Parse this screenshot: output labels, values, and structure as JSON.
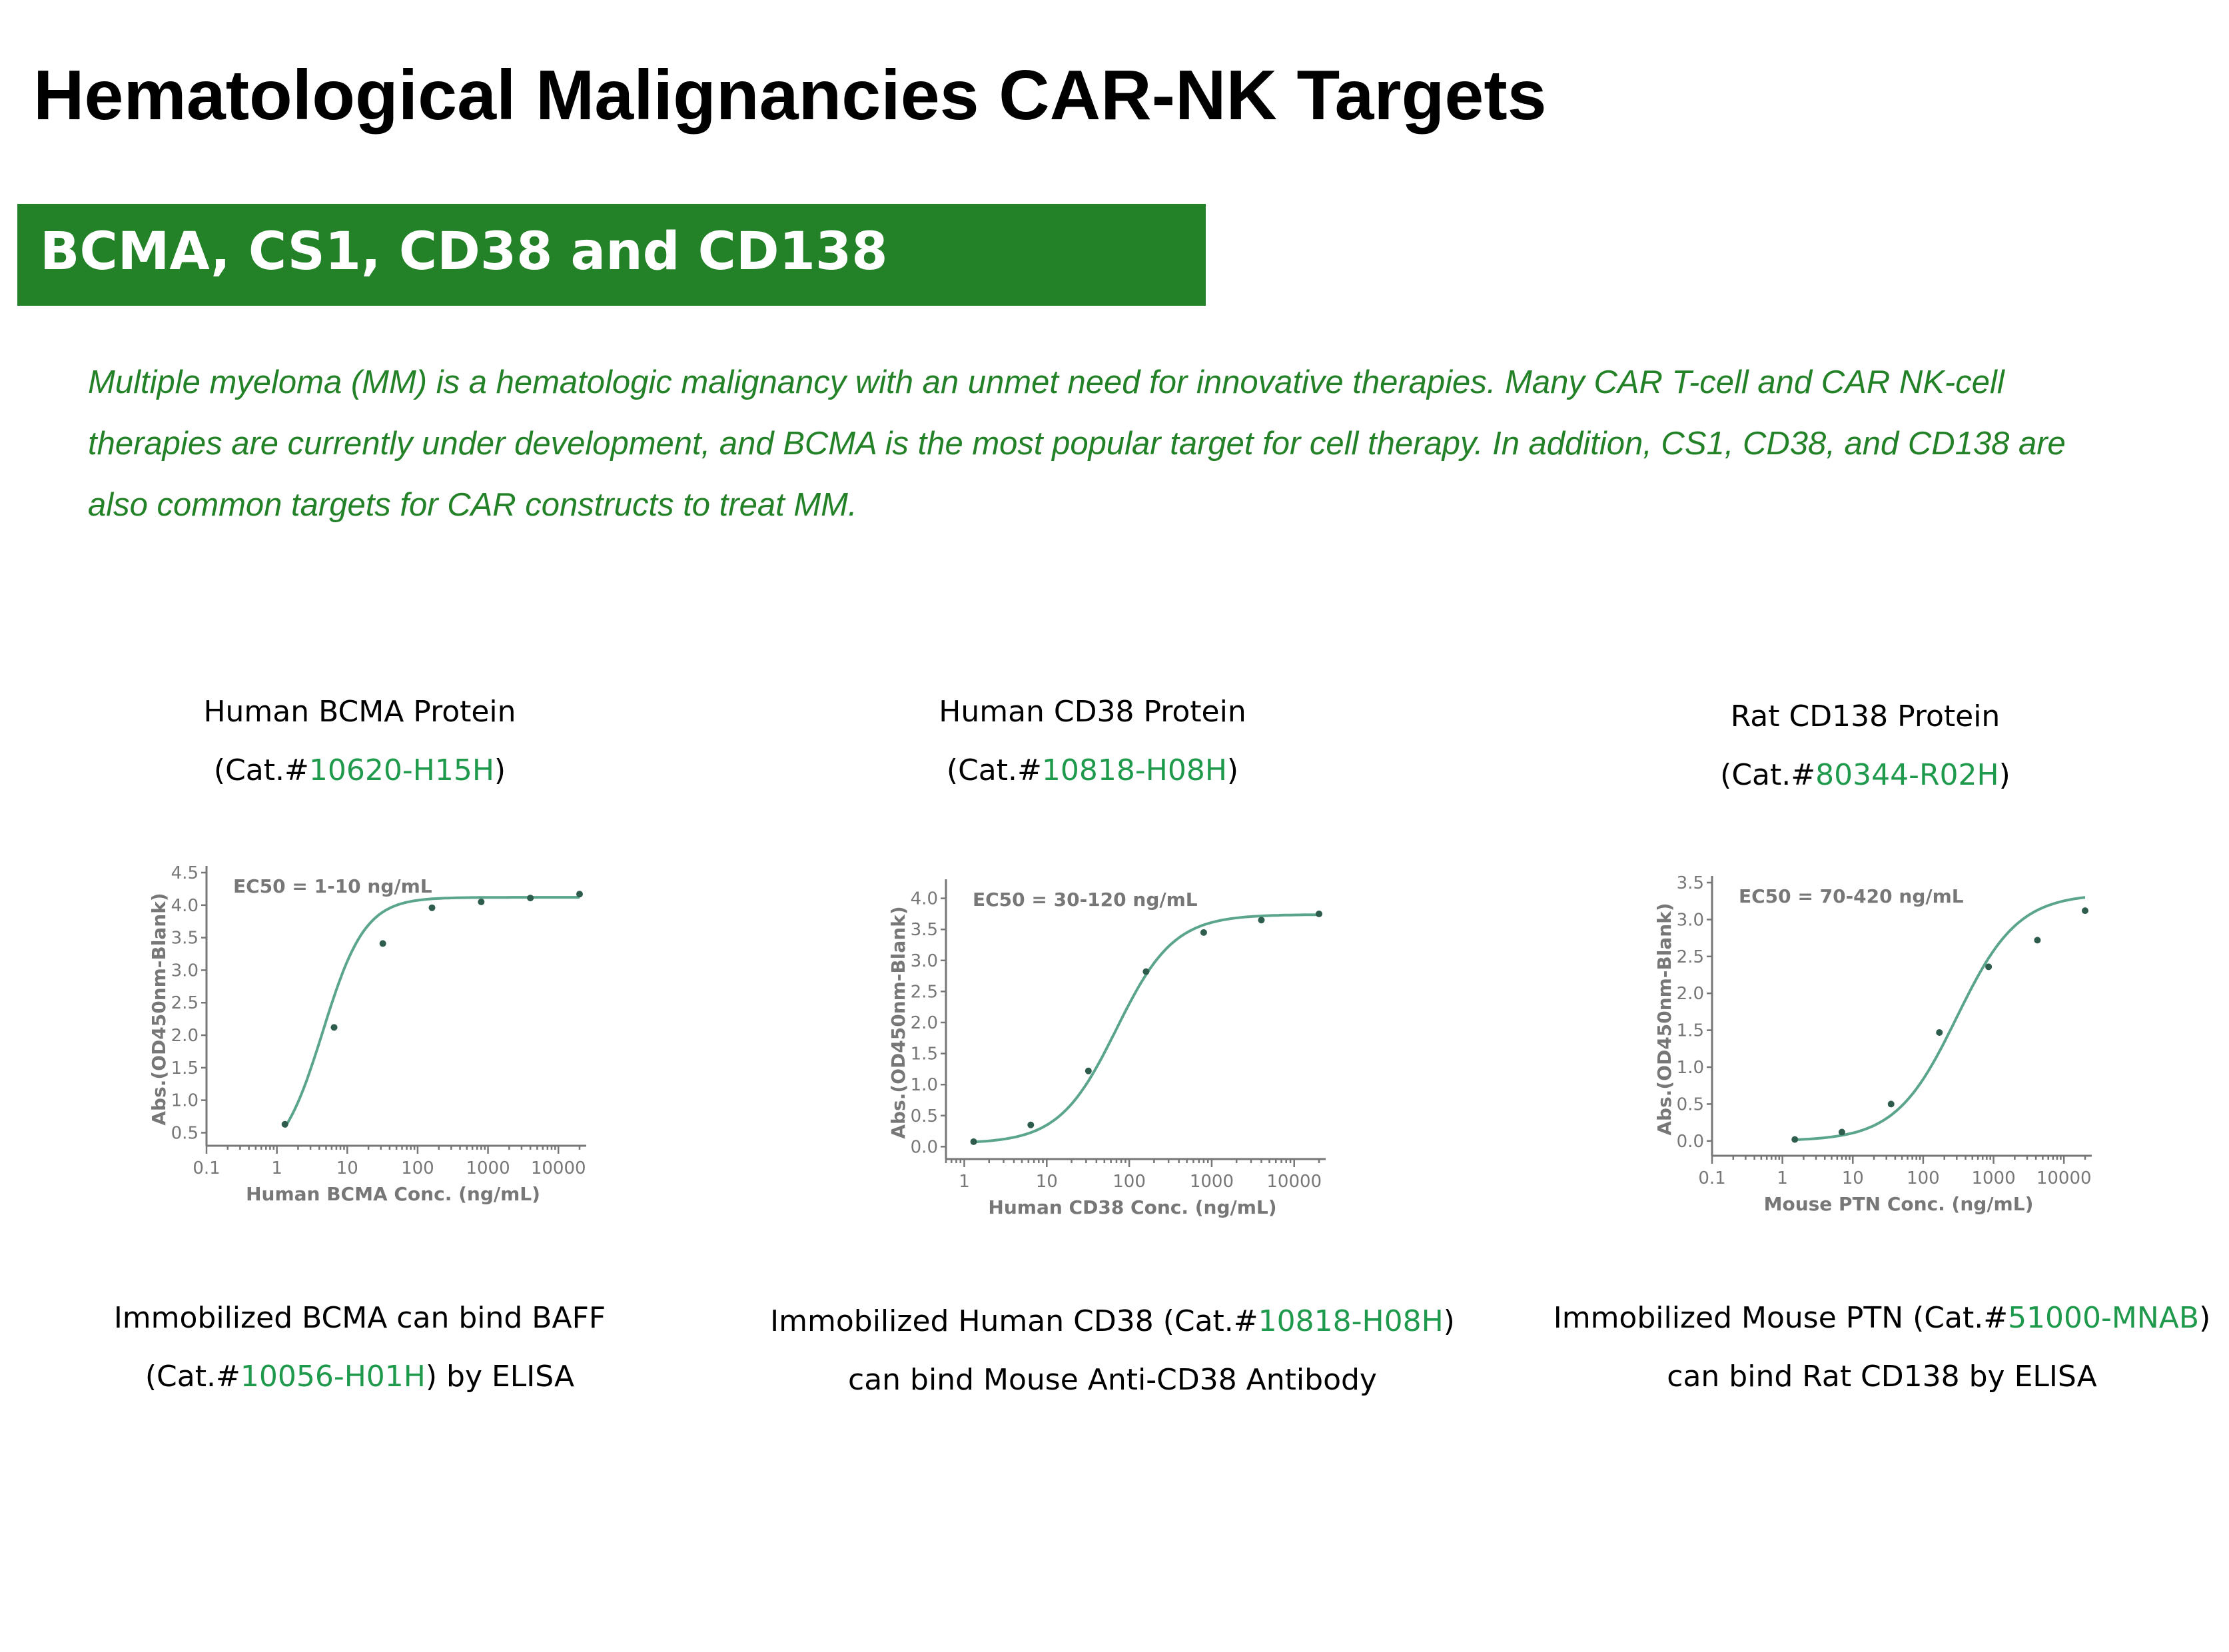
{
  "page": {
    "title": "Hematological Malignancies CAR-NK Targets",
    "banner": "BCMA, CS1, CD38 and CD138",
    "intro": [
      "Multiple myeloma (MM) is a hematologic malignancy with an unmet need for innovative therapies. Many CAR T-cell and CAR NK-cell",
      "therapies are currently under development, and BCMA is the most popular target for cell therapy. In addition, CS1, CD38, and CD138 are",
      "also common targets for CAR constructs to treat MM."
    ]
  },
  "panels": [
    {
      "heading": "Human BCMA Protein",
      "cat_prefix": "(Cat.#",
      "cat_number": "10620-H15H",
      "cat_suffix": ")",
      "caption_line1_a": "Immobilized BCMA can bind BAFF",
      "caption_line1_cat": "",
      "caption_line1_b": "",
      "caption_line2_a": "(Cat.#",
      "caption_line2_cat": "10056-H01H",
      "caption_line2_b": ") by ELISA"
    },
    {
      "heading": "Human CD38 Protein",
      "cat_prefix": "(Cat.#",
      "cat_number": "10818-H08H",
      "cat_suffix": ")",
      "caption_line1_a": "Immobilized Human CD38 (Cat.#",
      "caption_line1_cat": "10818-H08H",
      "caption_line1_b": ")",
      "caption_line2_a": "can bind Mouse Anti-CD38 Antibody",
      "caption_line2_cat": "",
      "caption_line2_b": ""
    },
    {
      "heading": "Rat CD138 Protein",
      "cat_prefix": "(Cat.#",
      "cat_number": "80344-R02H",
      "cat_suffix": ")",
      "caption_line1_a": "Immobilized Mouse PTN (Cat.#",
      "caption_line1_cat": "51000-MNAB",
      "caption_line1_b": ")",
      "caption_line2_a": "can bind Rat CD138 by ELISA",
      "caption_line2_cat": "",
      "caption_line2_b": ""
    }
  ],
  "colors": {
    "banner": "#238127",
    "intro_text": "#238127",
    "cat_number": "#1f9a4c",
    "curve": "#5aa58c",
    "points": "#2e5c4d",
    "axes": "#777777"
  },
  "chart_data": [
    {
      "type": "scatter",
      "x_scale": "log",
      "xlabel": "Human BCMA Conc. (ng/mL)",
      "ylabel": "Abs.(OD450nm-Blank)",
      "annotation": "EC50 = 1-10 ng/mL",
      "xlim": [
        0.1,
        20000
      ],
      "ylim": [
        0.3,
        4.5
      ],
      "x_ticks": [
        0.1,
        1,
        10,
        100,
        1000,
        10000
      ],
      "x_tick_labels": [
        "0.1",
        "1",
        "10",
        "100",
        "1000",
        "10000"
      ],
      "y_ticks": [
        0.5,
        1.0,
        1.5,
        2.0,
        2.5,
        3.0,
        3.5,
        4.0,
        4.5
      ],
      "y_tick_labels": [
        "0.5",
        "1.0",
        "1.5",
        "2.0",
        "2.5",
        "3.0",
        "3.5",
        "4.0",
        "4.5"
      ],
      "x": [
        1.3,
        6.5,
        32,
        160,
        800,
        4000,
        20000
      ],
      "y": [
        0.63,
        2.12,
        3.41,
        3.96,
        4.05,
        4.11,
        4.17
      ],
      "fit": {
        "bottom": 0.0,
        "top": 4.12,
        "ec50": 4.5,
        "hill": 1.45
      },
      "grid": false
    },
    {
      "type": "scatter",
      "x_scale": "log",
      "xlabel": "Human CD38 Conc. (ng/mL)",
      "ylabel": "Abs.(OD450nm-Blank)",
      "annotation": "EC50 = 30-120 ng/mL",
      "xlim": [
        0.6,
        20000
      ],
      "ylim": [
        -0.2,
        4.2
      ],
      "x_ticks": [
        1,
        10,
        100,
        1000,
        10000
      ],
      "x_tick_labels": [
        "1",
        "10",
        "100",
        "1000",
        "10000"
      ],
      "y_ticks": [
        0.0,
        0.5,
        1.0,
        1.5,
        2.0,
        2.5,
        3.0,
        3.5,
        4.0
      ],
      "y_tick_labels": [
        "0.0",
        "0.5",
        "1.0",
        "1.5",
        "2.0",
        "2.5",
        "3.0",
        "3.5",
        "4.0"
      ],
      "x": [
        1.3,
        6.4,
        32,
        160,
        800,
        4000,
        20000
      ],
      "y": [
        0.08,
        0.35,
        1.22,
        2.82,
        3.45,
        3.65,
        3.75
      ],
      "fit": {
        "bottom": 0.05,
        "top": 3.74,
        "ec50": 70,
        "hill": 1.25
      },
      "grid": false
    },
    {
      "type": "scatter",
      "x_scale": "log",
      "xlabel": "Mouse PTN Conc. (ng/mL)",
      "ylabel": "Abs.(OD450nm-Blank)",
      "annotation": "EC50 = 70-420 ng/mL",
      "xlim": [
        0.1,
        20000
      ],
      "ylim": [
        -0.2,
        3.5
      ],
      "x_ticks": [
        0.1,
        1,
        10,
        100,
        1000,
        10000
      ],
      "x_tick_labels": [
        "0.1",
        "1",
        "10",
        "100",
        "1000",
        "10000"
      ],
      "y_ticks": [
        0.0,
        0.5,
        1.0,
        1.5,
        2.0,
        2.5,
        3.0,
        3.5
      ],
      "y_tick_labels": [
        "0.0",
        "0.5",
        "1.0",
        "1.5",
        "2.0",
        "2.5",
        "3.0",
        "3.5"
      ],
      "x": [
        1.5,
        7,
        35,
        170,
        850,
        4200,
        20000
      ],
      "y": [
        0.02,
        0.12,
        0.5,
        1.47,
        2.36,
        2.72,
        3.12
      ],
      "fit": {
        "bottom": 0.0,
        "top": 3.35,
        "ec50": 300,
        "hill": 1.0
      },
      "grid": false
    }
  ]
}
